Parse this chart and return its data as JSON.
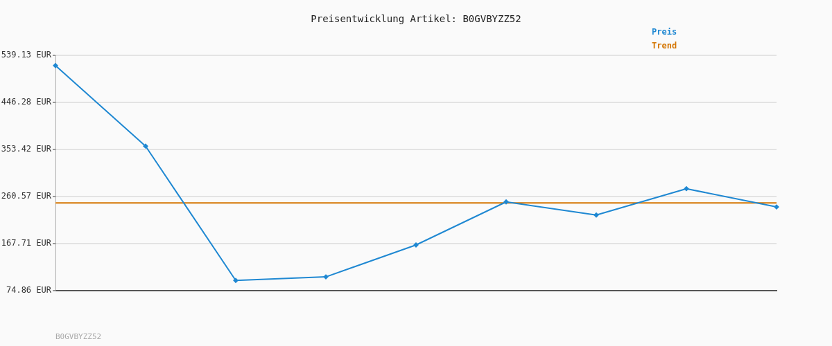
{
  "chart_data": {
    "type": "line",
    "title": "Preisentwicklung Artikel: B0GVBYZZ52",
    "categories": [
      null,
      null,
      null,
      null,
      null,
      null,
      null,
      null,
      null
    ],
    "series": [
      {
        "name": "Preis",
        "color": "#1f88d2",
        "marker": "diamond",
        "values": [
          519,
          360,
          95,
          102,
          165,
          250,
          224,
          276,
          240
        ]
      },
      {
        "name": "Trend",
        "color": "#d47500",
        "marker": "none",
        "values": [
          248,
          248,
          248,
          248,
          248,
          248,
          248,
          248,
          248
        ]
      }
    ],
    "ylim": [
      74.86,
      539.13
    ],
    "yticks": [
      {
        "value": 74.86,
        "label": "74.86 EUR"
      },
      {
        "value": 167.71,
        "label": "167.71 EUR"
      },
      {
        "value": 260.57,
        "label": "260.57 EUR"
      },
      {
        "value": 353.42,
        "label": "353.42 EUR"
      },
      {
        "value": 446.28,
        "label": "446.28 EUR"
      },
      {
        "value": 539.13,
        "label": "539.13 EUR"
      }
    ],
    "grid": "y",
    "legend": "top right",
    "tick_labels": "y",
    "annotations": [
      "B0GVBYZZ52"
    ]
  }
}
